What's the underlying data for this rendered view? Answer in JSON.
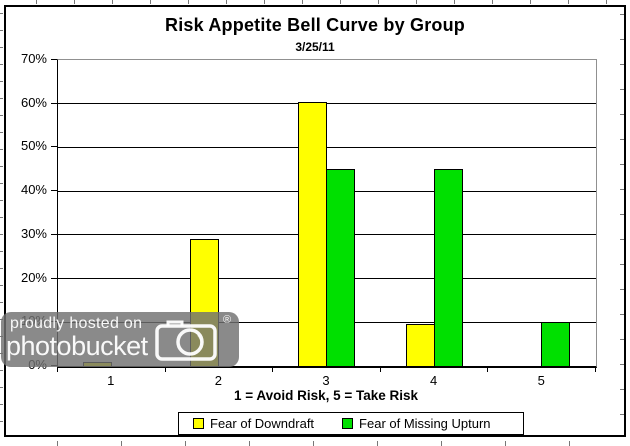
{
  "chart": {
    "title": "Risk Appetite Bell Curve by Group",
    "subtitle": "3/25/11",
    "x_axis_title": "1 = Avoid Risk, 5 = Take Risk"
  },
  "chart_data": {
    "type": "bar",
    "title": "Risk Appetite Bell Curve by Group",
    "subtitle": "3/25/11",
    "categories": [
      "1",
      "2",
      "3",
      "4",
      "5"
    ],
    "series": [
      {
        "name": "Fear of Downdraft",
        "color": "#FFFF00",
        "values": [
          1,
          29,
          60.5,
          9.7,
          0
        ]
      },
      {
        "name": "Fear of Missing Upturn",
        "color": "#00E000",
        "values": [
          0,
          0,
          45,
          45,
          10
        ]
      }
    ],
    "xlabel": "1 = Avoid Risk, 5 = Take Risk",
    "ylabel": "",
    "ylim": [
      0,
      70
    ],
    "y_tick_step": 10,
    "y_tick_labels": [
      "70%",
      "60%",
      "50%",
      "40%",
      "30%",
      "20%",
      "10%",
      "0%"
    ],
    "grid": true,
    "legend_position": "bottom",
    "bar_edge_color": "#000000",
    "gridline_color": "#000000",
    "plot_frame_color": "#909090"
  },
  "watermark": {
    "line1": "proudly hosted on",
    "line2": "photobucket",
    "registered_mark": "®"
  }
}
